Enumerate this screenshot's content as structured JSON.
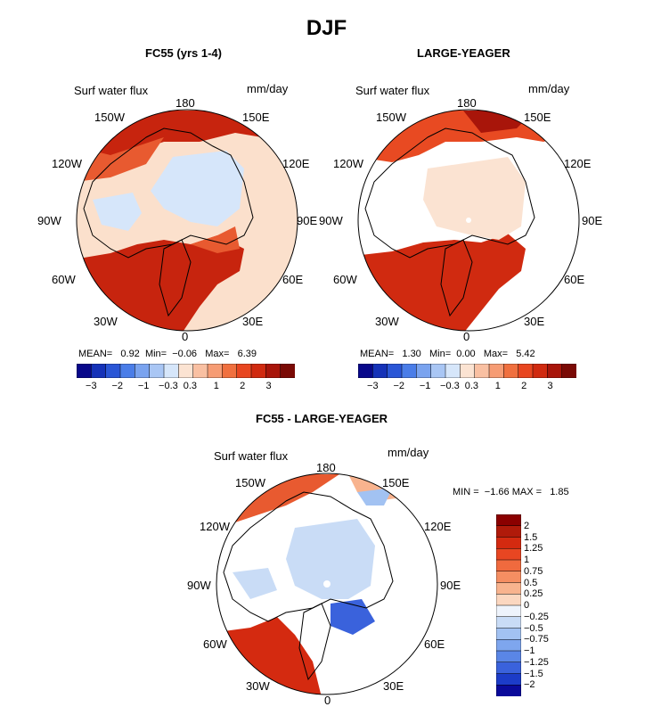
{
  "title": "DJF",
  "panels": [
    {
      "title": "FC55 (yrs 1-4)",
      "variable": "Surf water flux",
      "units": "mm/day",
      "stats": {
        "mean_label": "MEAN=",
        "mean": "0.92",
        "min_label": "Min=",
        "min": "−0.06",
        "max_label": "Max=",
        "max": "6.39"
      }
    },
    {
      "title": "LARGE-YEAGER",
      "variable": "Surf water flux",
      "units": "mm/day",
      "stats": {
        "mean_label": "MEAN=",
        "mean": "1.30",
        "min_label": "Min=",
        "min": "0.00",
        "max_label": "Max=",
        "max": "5.42"
      }
    },
    {
      "title": "FC55 - LARGE-YEAGER",
      "variable": "Surf water flux",
      "units": "mm/day",
      "stats": {
        "min_label": "MIN =",
        "min": "−1.66",
        "max_label": "MAX =",
        "max": "1.85"
      }
    }
  ],
  "longitude_labels": [
    "180",
    "150E",
    "120E",
    "90E",
    "60E",
    "30E",
    "0",
    "30W",
    "60W",
    "90W",
    "120W",
    "150W"
  ],
  "top_colorbar": {
    "tick_labels": [
      "−3",
      "−2",
      "−1",
      "−0.3",
      "0.3",
      "1",
      "2",
      "3"
    ],
    "colors": [
      "#08088a",
      "#1532b8",
      "#2a56d6",
      "#4a7de8",
      "#7aa3ef",
      "#a9c6f4",
      "#d6e6fa",
      "#fbe3d2",
      "#f9c0a2",
      "#f69c74",
      "#f0703f",
      "#e84620",
      "#d02a10",
      "#a8150a",
      "#7a0a05"
    ]
  },
  "diff_colorbar": {
    "tick_labels": [
      "2",
      "1.5",
      "1.25",
      "1",
      "0.75",
      "0.5",
      "0.25",
      "0",
      "−0.25",
      "−0.5",
      "−0.75",
      "−1",
      "−1.25",
      "−1.5",
      "−2"
    ],
    "colors": [
      "#8b0000",
      "#b01a0a",
      "#d42a10",
      "#e84622",
      "#f06a3e",
      "#f58e62",
      "#f8b38e",
      "#fbd7c0",
      "#eef3fb",
      "#c9dcf6",
      "#a2c2f2",
      "#7ea6ee",
      "#5a86e6",
      "#3a62dc",
      "#1c3cc8",
      "#0a0a9a"
    ]
  },
  "colors": {
    "ocean_pos": "#fbe0cc",
    "ocean_neg": "#d6e6fa",
    "red_strong": "#c7240e",
    "red_mid": "#e85a30",
    "land_line": "#000000"
  }
}
